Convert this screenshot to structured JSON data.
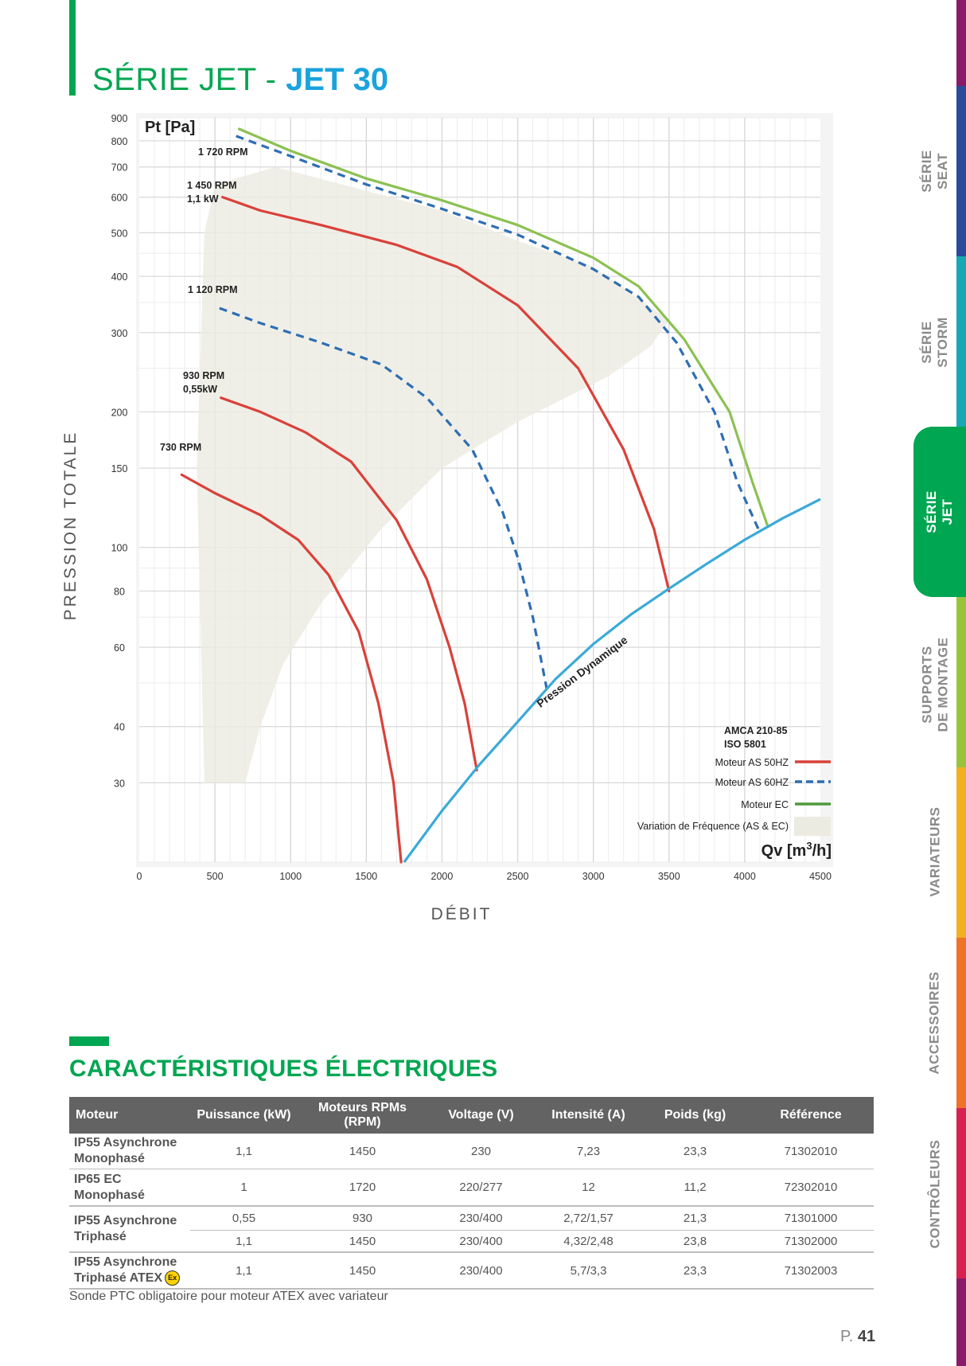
{
  "header": {
    "title_series": "SÉRIE JET - ",
    "title_model": "JET 30"
  },
  "colors": {
    "green": "#00a651",
    "blue": "#1aa3dd",
    "red": "#d9413a",
    "dashed_blue": "#2e6eb3",
    "ec_green": "#8cc152",
    "dynamic_blue": "#3aaad8",
    "fill": "#ecebe1"
  },
  "side_tabs": [
    {
      "label_1": "SÉRIE",
      "label_2": "SEAT",
      "active": false
    },
    {
      "label_1": "SÉRIE",
      "label_2": "STORM",
      "active": false
    },
    {
      "label_1": "SÉRIE",
      "label_2": "JET",
      "active": true
    },
    {
      "label_1": "SUPPORTS",
      "label_2": "DE MONTAGE",
      "active": false
    },
    {
      "label_1": "VARIATEURS",
      "label_2": "",
      "active": false
    },
    {
      "label_1": "ACCESSOIRES",
      "label_2": "",
      "active": false
    },
    {
      "label_1": "CONTRÔLEURS",
      "label_2": "",
      "active": false
    }
  ],
  "chart_data": {
    "type": "line",
    "ylabel": "PRESSION TOTALE",
    "xlabel": "DÉBIT",
    "y_unit": "Pt [Pa]",
    "x_unit": "Qv [m",
    "x_unit_sup": "3",
    "x_unit_end": "/h]",
    "y_scale": "log",
    "xlim": [
      0,
      4500
    ],
    "ylim": [
      20,
      900
    ],
    "x_ticks": [
      "0",
      "500",
      "1000",
      "1500",
      "2000",
      "2500",
      "3000",
      "3500",
      "4000",
      "4500"
    ],
    "y_ticks": [
      {
        "label": "900",
        "value": 900
      },
      {
        "label": "800",
        "value": 800
      },
      {
        "label": "700",
        "value": 700
      },
      {
        "label": "600",
        "value": 600
      },
      {
        "label": "500",
        "value": 500
      },
      {
        "label": "400",
        "value": 400
      },
      {
        "label": "300",
        "value": 300
      },
      {
        "label": "200",
        "value": 200
      },
      {
        "label": "150",
        "value": 150
      },
      {
        "label": "100",
        "value": 100
      },
      {
        "label": "80",
        "value": 80
      },
      {
        "label": "60",
        "value": 60
      },
      {
        "label": "40",
        "value": 40
      },
      {
        "label": "30",
        "value": 30
      }
    ],
    "grid": true,
    "legend_position": "bottom-right",
    "standards": [
      "AMCA 210-85",
      "ISO 5801"
    ],
    "legend": [
      {
        "label": "Moteur AS 50HZ",
        "style": "solid",
        "color": "#d9413a"
      },
      {
        "label": "Moteur AS 60HZ",
        "style": "dashed",
        "color": "#2e6eb3"
      },
      {
        "label": "Moteur EC",
        "style": "solid",
        "color": "#4f9a3c"
      },
      {
        "label": "Variation de Fréquence (AS & EC)",
        "style": "fill",
        "color": "#ecebe1"
      }
    ],
    "series": [
      {
        "label_1": "1 720 RPM",
        "label_2": "",
        "style": "ec",
        "color": "#8cc152",
        "points": [
          [
            660,
            850
          ],
          [
            1000,
            760
          ],
          [
            1500,
            660
          ],
          [
            2000,
            590
          ],
          [
            2500,
            520
          ],
          [
            3000,
            440
          ],
          [
            3300,
            380
          ],
          [
            3600,
            290
          ],
          [
            3900,
            200
          ],
          [
            4050,
            140
          ],
          [
            4150,
            112
          ]
        ]
      },
      {
        "label_1": "",
        "label_2": "",
        "style": "dashed",
        "color": "#2e6eb3",
        "points": [
          [
            640,
            820
          ],
          [
            1000,
            740
          ],
          [
            1500,
            640
          ],
          [
            2000,
            565
          ],
          [
            2500,
            495
          ],
          [
            3000,
            415
          ],
          [
            3300,
            360
          ],
          [
            3550,
            285
          ],
          [
            3800,
            200
          ],
          [
            3950,
            140
          ],
          [
            4100,
            108
          ]
        ]
      },
      {
        "label_1": "1 450 RPM",
        "label_2": "1,1 kW",
        "style": "solid",
        "color": "#d9413a",
        "points": [
          [
            550,
            600
          ],
          [
            800,
            560
          ],
          [
            1200,
            520
          ],
          [
            1700,
            470
          ],
          [
            2100,
            420
          ],
          [
            2500,
            345
          ],
          [
            2900,
            250
          ],
          [
            3200,
            165
          ],
          [
            3400,
            110
          ],
          [
            3500,
            80
          ]
        ]
      },
      {
        "label_1": "1 120 RPM",
        "label_2": "",
        "style": "dashed",
        "color": "#2e6eb3",
        "points": [
          [
            530,
            340
          ],
          [
            800,
            315
          ],
          [
            1200,
            285
          ],
          [
            1600,
            255
          ],
          [
            1900,
            215
          ],
          [
            2200,
            165
          ],
          [
            2400,
            120
          ],
          [
            2500,
            95
          ],
          [
            2600,
            70
          ],
          [
            2700,
            47
          ]
        ]
      },
      {
        "label_1": "930 RPM",
        "label_2": "0,55kW",
        "style": "solid",
        "color": "#d9413a",
        "points": [
          [
            540,
            215
          ],
          [
            800,
            200
          ],
          [
            1100,
            180
          ],
          [
            1400,
            155
          ],
          [
            1700,
            115
          ],
          [
            1900,
            85
          ],
          [
            2050,
            60
          ],
          [
            2150,
            45
          ],
          [
            2230,
            32
          ]
        ]
      },
      {
        "label_1": "730 RPM",
        "label_2": "",
        "style": "solid",
        "color": "#d9413a",
        "points": [
          [
            280,
            145
          ],
          [
            500,
            132
          ],
          [
            800,
            118
          ],
          [
            1050,
            104
          ],
          [
            1250,
            87
          ],
          [
            1450,
            65
          ],
          [
            1580,
            45
          ],
          [
            1680,
            30
          ],
          [
            1730,
            20
          ]
        ]
      }
    ],
    "dynamic_pressure": {
      "label": "Pression Dynamique",
      "color": "#3aaad8",
      "points": [
        [
          1750,
          20
        ],
        [
          2000,
          26
        ],
        [
          2250,
          33
        ],
        [
          2500,
          41
        ],
        [
          2750,
          51
        ],
        [
          3000,
          61
        ],
        [
          3250,
          71
        ],
        [
          3500,
          81
        ],
        [
          3750,
          92
        ],
        [
          4000,
          104
        ],
        [
          4250,
          116
        ],
        [
          4500,
          128
        ]
      ]
    },
    "frequency_band": [
      [
        430,
        30
      ],
      [
        380,
        150
      ],
      [
        430,
        500
      ],
      [
        500,
        640
      ],
      [
        900,
        700
      ],
      [
        2000,
        560
      ],
      [
        2500,
        480
      ],
      [
        3000,
        420
      ],
      [
        3500,
        320
      ],
      [
        3380,
        280
      ],
      [
        3100,
        240
      ],
      [
        2500,
        190
      ],
      [
        2000,
        150
      ],
      [
        1600,
        110
      ],
      [
        1200,
        75
      ],
      [
        950,
        55
      ],
      [
        800,
        40
      ],
      [
        700,
        30
      ]
    ]
  },
  "section": {
    "title": "CARACTÉRISTIQUES ÉLECTRIQUES"
  },
  "table": {
    "headers": [
      "Moteur",
      "Puissance (kW)",
      "Moteurs RPMs (RPM)",
      "Voltage (V)",
      "Intensité (A)",
      "Poids (kg)",
      "Référence"
    ],
    "rows": [
      {
        "motor_1": "IP55 Asynchrone",
        "motor_2": "Monophasé",
        "power": "1,1",
        "rpm": "1450",
        "voltage": "230",
        "intensity": "7,23",
        "weight": "23,3",
        "ref": "71302010"
      },
      {
        "motor_1": "IP65 EC",
        "motor_2": "Monophasé",
        "power": "1",
        "rpm": "1720",
        "voltage": "220/277",
        "intensity": "12",
        "weight": "11,2",
        "ref": "72302010"
      },
      {
        "motor_1": "IP55 Asynchrone",
        "motor_2": "Triphasé",
        "power": "0,55",
        "rpm": "930",
        "voltage": "230/400",
        "intensity": "2,72/1,57",
        "weight": "21,3",
        "ref": "71301000"
      },
      {
        "power": "1,1",
        "rpm": "1450",
        "voltage": "230/400",
        "intensity": "4,32/2,48",
        "weight": "23,8",
        "ref": "71302000"
      },
      {
        "motor_1": "IP55 Asynchrone",
        "motor_2": "Triphasé ATEX",
        "atex_badge": "Ex",
        "power": "1,1",
        "rpm": "1450",
        "voltage": "230/400",
        "intensity": "5,7/3,3",
        "weight": "23,3",
        "ref": "71302003"
      }
    ]
  },
  "footnote": "Sonde PTC obligatoire pour moteur ATEX avec variateur",
  "page": {
    "prefix": "P. ",
    "number": "41"
  }
}
